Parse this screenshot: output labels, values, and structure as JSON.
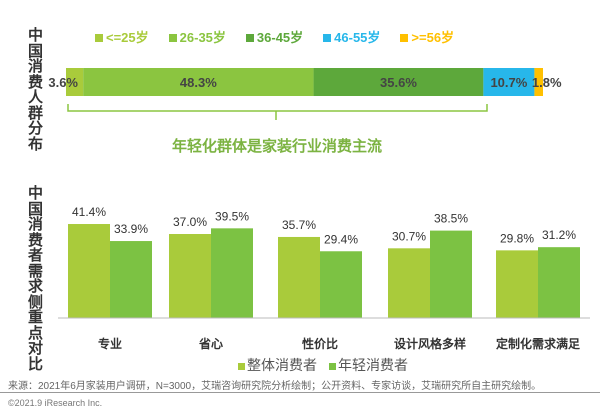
{
  "chart_data": [
    {
      "type": "bar",
      "stacked": true,
      "orientation": "horizontal",
      "title": "中国消费人群分布",
      "categories": [
        "<=25岁",
        "26-35岁",
        "36-45岁",
        "46-55岁",
        ">=56岁"
      ],
      "values": [
        3.6,
        48.3,
        35.6,
        10.7,
        1.8
      ],
      "labels": [
        "3.6%",
        "48.3%",
        "35.6%",
        "10.7%",
        "1.8%"
      ],
      "colors": [
        "#a9cb3b",
        "#8bc540",
        "#5da83b",
        "#27b7ea",
        "#ffc000"
      ],
      "annotation": "年轻化群体是家装行业消费主流"
    },
    {
      "type": "bar",
      "title": "中国消费者需求侧重点对比",
      "categories": [
        "专业",
        "省心",
        "性价比",
        "设计风格多样",
        "定制化需求满足"
      ],
      "series": [
        {
          "name": "整体消费者",
          "values": [
            41.4,
            37.0,
            35.7,
            30.7,
            29.8
          ],
          "labels": [
            "41.4%",
            "37.0%",
            "35.7%",
            "30.7%",
            "29.8%"
          ],
          "color": "#a9cb3b"
        },
        {
          "name": "年轻消费者",
          "values": [
            33.9,
            39.5,
            29.4,
            38.5,
            31.2
          ],
          "labels": [
            "33.9%",
            "39.5%",
            "29.4%",
            "38.5%",
            "31.2%"
          ],
          "color": "#7cc243"
        }
      ],
      "ylim": [
        0,
        45
      ]
    }
  ],
  "source": "来源：2021年6月家装用户调研，N=3000，艾瑞咨询研究院分析绘制；公开资料、专家访谈，艾瑞研究所自主研究绘制。",
  "copyright": "©2021.9 iResearch Inc."
}
